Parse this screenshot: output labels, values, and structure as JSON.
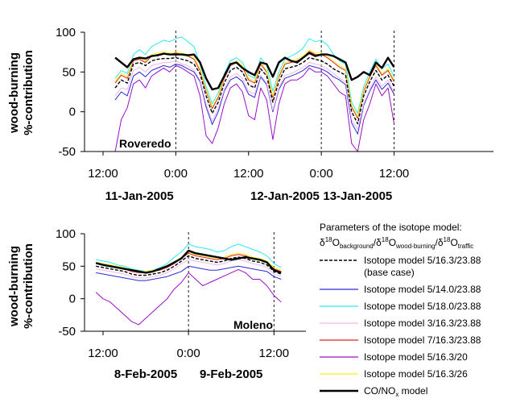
{
  "legend": {
    "heading": "Parameters of the isotope model:",
    "formula": {
      "d1": "δ",
      "s1": "18",
      "o1": "O",
      "b1": "background",
      "sep1": "/",
      "d2": "δ",
      "s2": "18",
      "o2": "O",
      "b2": "wood-burning",
      "sep2": "/",
      "d3": "δ",
      "s3": "18",
      "o3": "O",
      "b3": "traffic"
    },
    "entries": [
      {
        "label": "Isotope model 5/16.3/23.88",
        "sub": "(base case)",
        "color": "#000000",
        "dashed": true
      },
      {
        "label": "Isotope model 5/14.0/23.88",
        "color": "#2b2bd8"
      },
      {
        "label": "Isotope model 5/18.0/23.88",
        "color": "#32e8f0"
      },
      {
        "label": "Isotope model 3/16.3/23.88",
        "color": "#f2b8e6"
      },
      {
        "label": "Isotope model 7/16.3/23.88",
        "color": "#e02020"
      },
      {
        "label": "Isotope model 5/16.3/20",
        "color": "#9a10c8"
      },
      {
        "label": "Isotope model 5/16.3/26",
        "color": "#f2f21e"
      },
      {
        "label": "CO/NO",
        "sub_x": "x",
        "label_tail": " model",
        "color": "#000000",
        "bold": true
      }
    ]
  },
  "chart_data": [
    {
      "type": "line",
      "panel": "top",
      "annotation": "Roveredo",
      "ylabel_lines": [
        "wood-burning",
        "%-contribution"
      ],
      "ylim": [
        -50,
        100
      ],
      "yticks": [
        "-50",
        "0",
        "50",
        "100"
      ],
      "xlim": [
        0,
        64
      ],
      "xticks": [
        {
          "x": 0,
          "label": "12:00"
        },
        {
          "x": 12,
          "label": "0:00"
        },
        {
          "x": 24,
          "label": "12:00"
        },
        {
          "x": 36,
          "label": "0:00"
        },
        {
          "x": 48,
          "label": "12:00"
        }
      ],
      "dates": [
        {
          "x": 6,
          "label": "11-Jan-2005"
        },
        {
          "x": 30,
          "label": "12-Jan-2005"
        },
        {
          "x": 42,
          "label": "13-Jan-2005"
        }
      ],
      "dashed_lines_x": [
        12,
        36,
        48
      ],
      "x": [
        2,
        3,
        4,
        5,
        6,
        7,
        8,
        9,
        10,
        11,
        12,
        13,
        14,
        15,
        16,
        17,
        18,
        19,
        20,
        21,
        22,
        23,
        24,
        25,
        26,
        27,
        28,
        29,
        30,
        31,
        32,
        33,
        34,
        35,
        36,
        37,
        38,
        39,
        40,
        41,
        42,
        43,
        44,
        45,
        46,
        47,
        48
      ],
      "series": [
        {
          "name": "CO/NO",
          "color": "#000000",
          "width": 2.4,
          "values": [
            68,
            62,
            56,
            66,
            68,
            67,
            70,
            71,
            73,
            72,
            72,
            72,
            71,
            72,
            62,
            42,
            28,
            30,
            45,
            60,
            62,
            55,
            50,
            46,
            62,
            60,
            44,
            62,
            68,
            64,
            62,
            68,
            74,
            70,
            72,
            72,
            70,
            66,
            62,
            40,
            44,
            50,
            46,
            62,
            55,
            68,
            56
          ]
        },
        {
          "name": "Isotope model 5/16.3/23.88",
          "color": "#000000",
          "width": 1.4,
          "dashed": true,
          "values": [
            30,
            40,
            36,
            60,
            62,
            58,
            64,
            66,
            67,
            67,
            68,
            66,
            64,
            60,
            48,
            20,
            -2,
            12,
            36,
            52,
            56,
            50,
            34,
            30,
            54,
            45,
            12,
            38,
            54,
            56,
            58,
            62,
            68,
            66,
            64,
            60,
            54,
            50,
            46,
            0,
            -15,
            20,
            38,
            52,
            40,
            46,
            32
          ]
        },
        {
          "name": "Isotope model 5/14.0/23.88",
          "color": "#2b2bd8",
          "width": 1,
          "values": [
            15,
            25,
            20,
            45,
            50,
            44,
            52,
            55,
            58,
            56,
            60,
            58,
            54,
            50,
            38,
            6,
            -16,
            0,
            26,
            40,
            44,
            38,
            22,
            18,
            44,
            34,
            0,
            28,
            42,
            45,
            48,
            52,
            58,
            56,
            54,
            50,
            44,
            40,
            34,
            -14,
            -28,
            8,
            26,
            40,
            28,
            36,
            22
          ]
        },
        {
          "name": "Isotope model 5/18.0/23.88",
          "color": "#32e8f0",
          "width": 1,
          "values": [
            42,
            52,
            48,
            72,
            78,
            72,
            82,
            86,
            90,
            88,
            92,
            94,
            88,
            82,
            60,
            32,
            10,
            24,
            48,
            64,
            68,
            62,
            46,
            42,
            68,
            58,
            26,
            50,
            66,
            70,
            74,
            80,
            92,
            88,
            90,
            84,
            72,
            64,
            60,
            12,
            -2,
            32,
            50,
            66,
            54,
            60,
            44
          ]
        },
        {
          "name": "Isotope model 3/16.3/23.88",
          "color": "#f2b8e6",
          "width": 1,
          "values": [
            20,
            30,
            28,
            52,
            56,
            50,
            58,
            60,
            62,
            62,
            64,
            60,
            58,
            52,
            40,
            10,
            -12,
            4,
            28,
            44,
            48,
            42,
            26,
            22,
            46,
            36,
            2,
            30,
            46,
            48,
            52,
            56,
            62,
            60,
            58,
            54,
            48,
            42,
            38,
            -10,
            -22,
            10,
            28,
            44,
            32,
            40,
            24
          ]
        },
        {
          "name": "Isotope model 7/16.3/23.88",
          "color": "#e02020",
          "width": 1,
          "values": [
            36,
            46,
            42,
            64,
            66,
            62,
            70,
            72,
            74,
            72,
            74,
            72,
            70,
            66,
            52,
            26,
            4,
            18,
            42,
            58,
            62,
            56,
            40,
            36,
            60,
            50,
            18,
            44,
            60,
            62,
            64,
            68,
            76,
            72,
            72,
            68,
            62,
            56,
            52,
            6,
            -8,
            26,
            44,
            58,
            46,
            52,
            38
          ]
        },
        {
          "name": "Isotope model 5/16.3/20",
          "color": "#9a10c8",
          "width": 1,
          "values": [
            -50,
            -10,
            5,
            35,
            40,
            30,
            45,
            50,
            55,
            50,
            58,
            55,
            50,
            45,
            20,
            -30,
            -40,
            -20,
            10,
            30,
            35,
            25,
            -5,
            -10,
            30,
            15,
            -35,
            10,
            35,
            40,
            40,
            45,
            55,
            50,
            50,
            45,
            35,
            25,
            20,
            -40,
            -50,
            -10,
            10,
            35,
            20,
            30,
            -15
          ]
        },
        {
          "name": "Isotope model 5/16.3/26",
          "color": "#f2f21e",
          "width": 1,
          "values": [
            38,
            48,
            44,
            66,
            68,
            64,
            72,
            74,
            76,
            74,
            76,
            74,
            72,
            68,
            54,
            28,
            6,
            20,
            44,
            60,
            64,
            58,
            42,
            38,
            62,
            52,
            20,
            46,
            62,
            64,
            66,
            70,
            78,
            74,
            74,
            70,
            64,
            58,
            54,
            8,
            -6,
            28,
            46,
            60,
            48,
            54,
            40
          ]
        }
      ]
    },
    {
      "type": "line",
      "panel": "bottom",
      "annotation": "Moleno",
      "ylabel_lines": [
        "wood-burning",
        "%-contribution"
      ],
      "ylim": [
        -50,
        100
      ],
      "yticks": [
        "-50",
        "0",
        "50",
        "100"
      ],
      "xlim": [
        0,
        26
      ],
      "xticks": [
        {
          "x": 0,
          "label": "12:00"
        },
        {
          "x": 12,
          "label": "0:00"
        },
        {
          "x": 24,
          "label": "12:00"
        }
      ],
      "dates": [
        {
          "x": 6,
          "label": "8-Feb-2005"
        },
        {
          "x": 18,
          "label": "9-Feb-2005"
        }
      ],
      "dashed_lines_x": [
        12,
        24
      ],
      "x": [
        -1,
        0,
        1,
        2,
        3,
        4,
        5,
        6,
        7,
        8,
        9,
        10,
        11,
        12,
        13,
        14,
        15,
        16,
        17,
        18,
        19,
        20,
        21,
        22,
        23,
        24,
        25
      ],
      "series": [
        {
          "name": "CO/NO",
          "color": "#000000",
          "width": 2.4,
          "values": [
            55,
            52,
            50,
            48,
            46,
            44,
            42,
            40,
            42,
            46,
            50,
            56,
            62,
            74,
            70,
            68,
            66,
            64,
            62,
            60,
            62,
            64,
            62,
            60,
            56,
            44,
            40
          ]
        },
        {
          "name": "Isotope model 5/16.3/23.88",
          "color": "#000000",
          "width": 1.4,
          "dashed": true,
          "values": [
            50,
            48,
            46,
            44,
            42,
            38,
            36,
            36,
            38,
            40,
            44,
            50,
            58,
            66,
            62,
            60,
            58,
            56,
            58,
            62,
            64,
            62,
            58,
            56,
            52,
            42,
            38
          ]
        },
        {
          "name": "Isotope model 5/14.0/23.88",
          "color": "#2b2bd8",
          "width": 1,
          "values": [
            40,
            38,
            36,
            34,
            32,
            30,
            28,
            28,
            30,
            32,
            34,
            38,
            42,
            50,
            48,
            46,
            44,
            44,
            46,
            48,
            50,
            48,
            46,
            44,
            42,
            34,
            30
          ]
        },
        {
          "name": "Isotope model 5/18.0/23.88",
          "color": "#32e8f0",
          "width": 1,
          "values": [
            60,
            58,
            56,
            52,
            50,
            46,
            44,
            42,
            44,
            48,
            54,
            64,
            72,
            84,
            80,
            78,
            76,
            72,
            74,
            80,
            84,
            80,
            76,
            72,
            66,
            54,
            48
          ]
        },
        {
          "name": "Isotope model 3/16.3/23.88",
          "color": "#f2b8e6",
          "width": 1,
          "values": [
            46,
            44,
            42,
            40,
            38,
            34,
            32,
            32,
            34,
            36,
            40,
            46,
            54,
            60,
            58,
            56,
            54,
            52,
            54,
            58,
            60,
            58,
            54,
            52,
            48,
            38,
            34
          ]
        },
        {
          "name": "Isotope model 7/16.3/23.88",
          "color": "#e02020",
          "width": 1,
          "values": [
            54,
            52,
            50,
            48,
            46,
            42,
            40,
            40,
            42,
            44,
            48,
            54,
            62,
            70,
            66,
            64,
            62,
            60,
            62,
            66,
            68,
            66,
            62,
            60,
            56,
            46,
            42
          ]
        },
        {
          "name": "Isotope model 5/16.3/20",
          "color": "#9a10c8",
          "width": 1,
          "values": [
            10,
            0,
            -5,
            -15,
            -25,
            -35,
            -40,
            -30,
            -20,
            -10,
            0,
            15,
            25,
            40,
            30,
            20,
            25,
            30,
            35,
            40,
            45,
            40,
            30,
            30,
            20,
            5,
            -5
          ]
        },
        {
          "name": "Isotope model 5/16.3/26",
          "color": "#f2f21e",
          "width": 1,
          "values": [
            56,
            54,
            52,
            50,
            48,
            44,
            42,
            42,
            44,
            46,
            50,
            56,
            64,
            72,
            68,
            66,
            64,
            62,
            64,
            68,
            70,
            68,
            64,
            62,
            58,
            48,
            44
          ]
        }
      ]
    }
  ]
}
